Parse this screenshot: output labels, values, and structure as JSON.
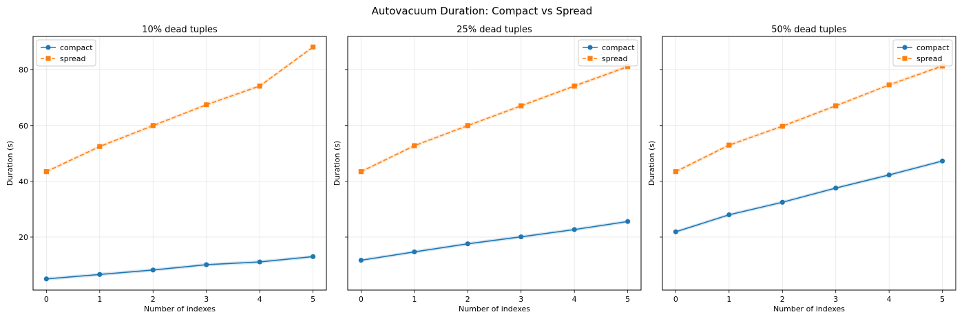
{
  "suptitle": "Autovacuum Duration: Compact vs Spread",
  "colors": {
    "compact": "#1f77b4",
    "spread": "#ff7f0e"
  },
  "chart_data": [
    {
      "type": "line",
      "title": "10% dead tuples",
      "xlabel": "Number of indexes",
      "ylabel": "Duration (s)",
      "x": [
        0,
        1,
        2,
        3,
        4,
        5
      ],
      "xlim": [
        -0.25,
        5.25
      ],
      "ylim": [
        1.0,
        92.0
      ],
      "yticks": [
        20,
        40,
        60,
        80
      ],
      "show_y_ticklabels": true,
      "grid": true,
      "legend": "top-left",
      "series": [
        {
          "name": "compact",
          "marker": "circle",
          "linestyle": "solid",
          "values": [
            5.0,
            6.6,
            8.2,
            10.1,
            11.1,
            13.0
          ]
        },
        {
          "name": "spread",
          "marker": "square",
          "linestyle": "dashed",
          "values": [
            43.5,
            52.5,
            60.0,
            67.5,
            74.2,
            88.2
          ]
        }
      ]
    },
    {
      "type": "line",
      "title": "25% dead tuples",
      "xlabel": "Number of indexes",
      "ylabel": "Duration (s)",
      "x": [
        0,
        1,
        2,
        3,
        4,
        5
      ],
      "xlim": [
        -0.25,
        5.25
      ],
      "ylim": [
        1.0,
        92.0
      ],
      "yticks": [
        20,
        40,
        60,
        80
      ],
      "show_y_ticklabels": false,
      "grid": true,
      "legend": "top-right",
      "series": [
        {
          "name": "compact",
          "marker": "circle",
          "linestyle": "solid",
          "values": [
            11.7,
            14.7,
            17.6,
            20.1,
            22.7,
            25.6
          ]
        },
        {
          "name": "spread",
          "marker": "square",
          "linestyle": "dashed",
          "values": [
            43.5,
            52.8,
            60.0,
            67.1,
            74.2,
            81.2
          ]
        }
      ]
    },
    {
      "type": "line",
      "title": "50% dead tuples",
      "xlabel": "Number of indexes",
      "ylabel": "Duration (s)",
      "x": [
        0,
        1,
        2,
        3,
        4,
        5
      ],
      "xlim": [
        -0.25,
        5.25
      ],
      "ylim": [
        1.0,
        92.0
      ],
      "yticks": [
        20,
        40,
        60,
        80
      ],
      "show_y_ticklabels": false,
      "grid": true,
      "legend": "top-right",
      "series": [
        {
          "name": "compact",
          "marker": "circle",
          "linestyle": "solid",
          "values": [
            21.9,
            28.0,
            32.5,
            37.6,
            42.3,
            47.3
          ]
        },
        {
          "name": "spread",
          "marker": "square",
          "linestyle": "dashed",
          "values": [
            43.5,
            53.0,
            59.8,
            67.1,
            74.6,
            81.4
          ]
        }
      ]
    }
  ]
}
